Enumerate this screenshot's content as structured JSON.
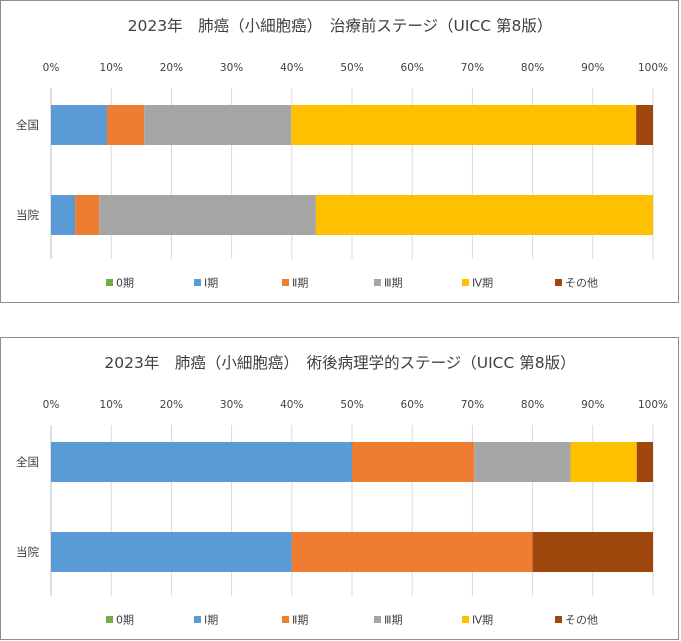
{
  "colors": {
    "stage0": "#70AD47",
    "stage1": "#5B9BD5",
    "stage2": "#ED7D31",
    "stage3": "#A5A5A5",
    "stage4": "#FFC000",
    "other": "#9E480E",
    "grid": "#d9d9d9",
    "text": "#404040",
    "border": "#8c8c8c"
  },
  "chart_data": [
    {
      "type": "bar",
      "orientation": "horizontal",
      "stacked": "percent",
      "title": "2023年　肺癌（小細胞癌）　治療前ステージ（UICC 第8版）",
      "xlim": [
        0,
        100
      ],
      "xticks": [
        "0%",
        "10%",
        "20%",
        "30%",
        "40%",
        "50%",
        "60%",
        "70%",
        "80%",
        "90%",
        "100%"
      ],
      "grid": true,
      "legend_position": "bottom",
      "categories": [
        "全国",
        "当院"
      ],
      "series": [
        {
          "name": "0期",
          "values": [
            0,
            0
          ]
        },
        {
          "name": "Ⅰ期",
          "values": [
            9.3,
            4.0
          ]
        },
        {
          "name": "Ⅱ期",
          "values": [
            6.2,
            4.0
          ]
        },
        {
          "name": "Ⅲ期",
          "values": [
            24.4,
            36.0
          ]
        },
        {
          "name": "Ⅳ期",
          "values": [
            57.3,
            56.0
          ]
        },
        {
          "name": "その他",
          "values": [
            2.8,
            0
          ]
        }
      ]
    },
    {
      "type": "bar",
      "orientation": "horizontal",
      "stacked": "percent",
      "title": "2023年　肺癌（小細胞癌）　術後病理学的ステージ（UICC 第8版）",
      "xlim": [
        0,
        100
      ],
      "xticks": [
        "0%",
        "10%",
        "20%",
        "30%",
        "40%",
        "50%",
        "60%",
        "70%",
        "80%",
        "90%",
        "100%"
      ],
      "grid": true,
      "legend_position": "bottom",
      "categories": [
        "全国",
        "当院"
      ],
      "series": [
        {
          "name": "0期",
          "values": [
            0,
            0
          ]
        },
        {
          "name": "Ⅰ期",
          "values": [
            50.0,
            40.0
          ]
        },
        {
          "name": "Ⅱ期",
          "values": [
            20.3,
            40.0
          ]
        },
        {
          "name": "Ⅲ期",
          "values": [
            16.0,
            0
          ]
        },
        {
          "name": "Ⅳ期",
          "values": [
            11.0,
            0
          ]
        },
        {
          "name": "その他",
          "values": [
            2.7,
            20.0
          ]
        }
      ]
    }
  ]
}
